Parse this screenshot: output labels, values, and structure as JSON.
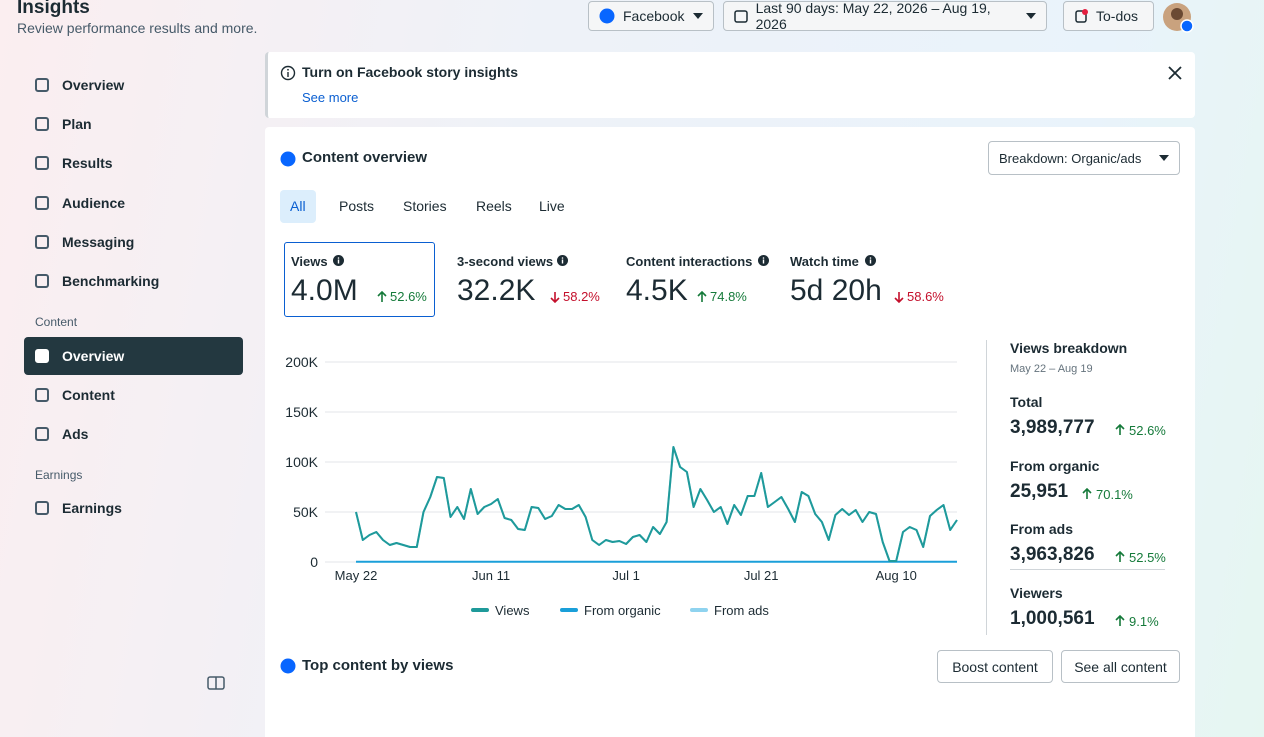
{
  "header": {
    "title": "Insights",
    "subtitle": "Review performance results and more."
  },
  "toolbar": {
    "platform": "Facebook",
    "date_range": "Last 90 days: May 22, 2026 – Aug 19, 2026",
    "todos": "To-dos"
  },
  "sidebar": {
    "items": [
      "Overview",
      "Plan",
      "Results",
      "Audience",
      "Messaging",
      "Benchmarking"
    ],
    "content_section": "Content",
    "content_items": [
      "Overview",
      "Content",
      "Ads"
    ],
    "earnings_section": "Earnings",
    "earnings_items": [
      "Earnings"
    ]
  },
  "banner": {
    "title": "Turn on Facebook story insights",
    "link": "See more"
  },
  "overview": {
    "title": "Content overview",
    "breakdown": "Breakdown: Organic/ads",
    "tabs": [
      "All",
      "Posts",
      "Stories",
      "Reels",
      "Live"
    ]
  },
  "metrics": [
    {
      "label": "Views",
      "value": "4.0M",
      "change": "52.6%",
      "direction": "up"
    },
    {
      "label": "3-second views",
      "value": "32.2K",
      "change": "58.2%",
      "direction": "down"
    },
    {
      "label": "Content interactions",
      "value": "4.5K",
      "change": "74.8%",
      "direction": "up"
    },
    {
      "label": "Watch time",
      "value": "5d 20h",
      "change": "58.6%",
      "direction": "down"
    }
  ],
  "views_breakdown": {
    "title": "Views breakdown",
    "period": "May 22 – Aug 19",
    "items": [
      {
        "label": "Total",
        "value": "3,989,777",
        "change": "52.6%",
        "direction": "up"
      },
      {
        "label": "From organic",
        "value": "25,951",
        "change": "70.1%",
        "direction": "up"
      },
      {
        "label": "From ads",
        "value": "3,963,826",
        "change": "52.5%",
        "direction": "up"
      },
      {
        "label": "Viewers",
        "value": "1,000,561",
        "change": "9.1%",
        "direction": "up"
      }
    ]
  },
  "top_content": {
    "title": "Top content by views",
    "buttons": [
      "Boost content",
      "See all content"
    ]
  },
  "chart_data": {
    "type": "line",
    "categories": [
      "May 22",
      null,
      null,
      null,
      null,
      null,
      null,
      null,
      null,
      null,
      null,
      null,
      null,
      null,
      null,
      null,
      null,
      null,
      null,
      null,
      "Jun 11",
      null,
      null,
      null,
      null,
      null,
      null,
      null,
      null,
      null,
      null,
      null,
      null,
      null,
      null,
      null,
      null,
      null,
      null,
      null,
      "Jul 1",
      null,
      null,
      null,
      null,
      null,
      null,
      null,
      null,
      null,
      null,
      null,
      null,
      null,
      null,
      null,
      null,
      null,
      null,
      null,
      "Jul 21",
      null,
      null,
      null,
      null,
      null,
      null,
      null,
      null,
      null,
      null,
      null,
      null,
      null,
      null,
      null,
      null,
      null,
      null,
      null,
      "Aug 10",
      null,
      null,
      null,
      null,
      null,
      null,
      null,
      null,
      null
    ],
    "series": [
      {
        "name": "Views",
        "color": "#1f9a9a",
        "values": [
          50000,
          22000,
          27000,
          30000,
          22000,
          17000,
          19000,
          17000,
          15000,
          15000,
          50000,
          65000,
          85000,
          84000,
          45000,
          55000,
          43000,
          73000,
          48000,
          55000,
          58000,
          63000,
          44000,
          42000,
          33000,
          32000,
          55000,
          54000,
          43000,
          46000,
          57000,
          53000,
          53000,
          57000,
          45000,
          22000,
          17000,
          22000,
          20000,
          21000,
          18000,
          25000,
          27000,
          20000,
          35000,
          28000,
          40000,
          115000,
          95000,
          90000,
          55000,
          73000,
          62000,
          50000,
          55000,
          38000,
          57000,
          47000,
          66000,
          66000,
          89000,
          55000,
          60000,
          65000,
          53000,
          40000,
          70000,
          66000,
          48000,
          40000,
          22000,
          47000,
          53000,
          47000,
          52000,
          40000,
          50000,
          48000,
          20000,
          1000,
          1000,
          30000,
          35000,
          32000,
          15000,
          46000,
          52000,
          57000,
          32000,
          42000
        ]
      },
      {
        "name": "From organic",
        "color": "#1a9fd9",
        "values": [
          300,
          300,
          300,
          300,
          300,
          300,
          300,
          300,
          300,
          300,
          300,
          300,
          300,
          300,
          300,
          300,
          300,
          300,
          300,
          300,
          300,
          300,
          300,
          300,
          300,
          300,
          300,
          300,
          300,
          300,
          300,
          300,
          300,
          300,
          300,
          300,
          300,
          300,
          300,
          300,
          300,
          300,
          300,
          300,
          300,
          300,
          300,
          300,
          300,
          300,
          300,
          300,
          300,
          300,
          300,
          300,
          300,
          300,
          300,
          300,
          300,
          300,
          300,
          300,
          300,
          300,
          300,
          300,
          300,
          300,
          300,
          300,
          300,
          300,
          300,
          300,
          300,
          300,
          300,
          300,
          300,
          300,
          300,
          300,
          300,
          300,
          300,
          300,
          300,
          300
        ]
      },
      {
        "name": "From ads",
        "color": "#8fd3ef",
        "values": [
          50000,
          22000,
          27000,
          30000,
          22000,
          17000,
          19000,
          17000,
          15000,
          15000,
          50000,
          65000,
          85000,
          84000,
          45000,
          55000,
          43000,
          73000,
          48000,
          55000,
          58000,
          63000,
          44000,
          42000,
          33000,
          32000,
          55000,
          54000,
          43000,
          46000,
          57000,
          53000,
          53000,
          57000,
          45000,
          22000,
          17000,
          22000,
          20000,
          21000,
          18000,
          25000,
          27000,
          20000,
          35000,
          28000,
          40000,
          115000,
          95000,
          90000,
          55000,
          73000,
          62000,
          50000,
          55000,
          38000,
          57000,
          47000,
          66000,
          66000,
          89000,
          55000,
          60000,
          65000,
          53000,
          40000,
          70000,
          66000,
          48000,
          40000,
          22000,
          47000,
          53000,
          47000,
          52000,
          40000,
          50000,
          48000,
          20000,
          1000,
          1000,
          30000,
          35000,
          32000,
          15000,
          46000,
          52000,
          57000,
          32000,
          42000
        ]
      }
    ],
    "ylim": [
      0,
      200000
    ],
    "yticks": [
      0,
      {
        "value": 50000,
        "label": "50K"
      },
      {
        "value": 100000,
        "label": "100K"
      },
      {
        "value": 150000,
        "label": "150K"
      },
      {
        "value": 200000,
        "label": "200K"
      }
    ],
    "grid": true
  }
}
